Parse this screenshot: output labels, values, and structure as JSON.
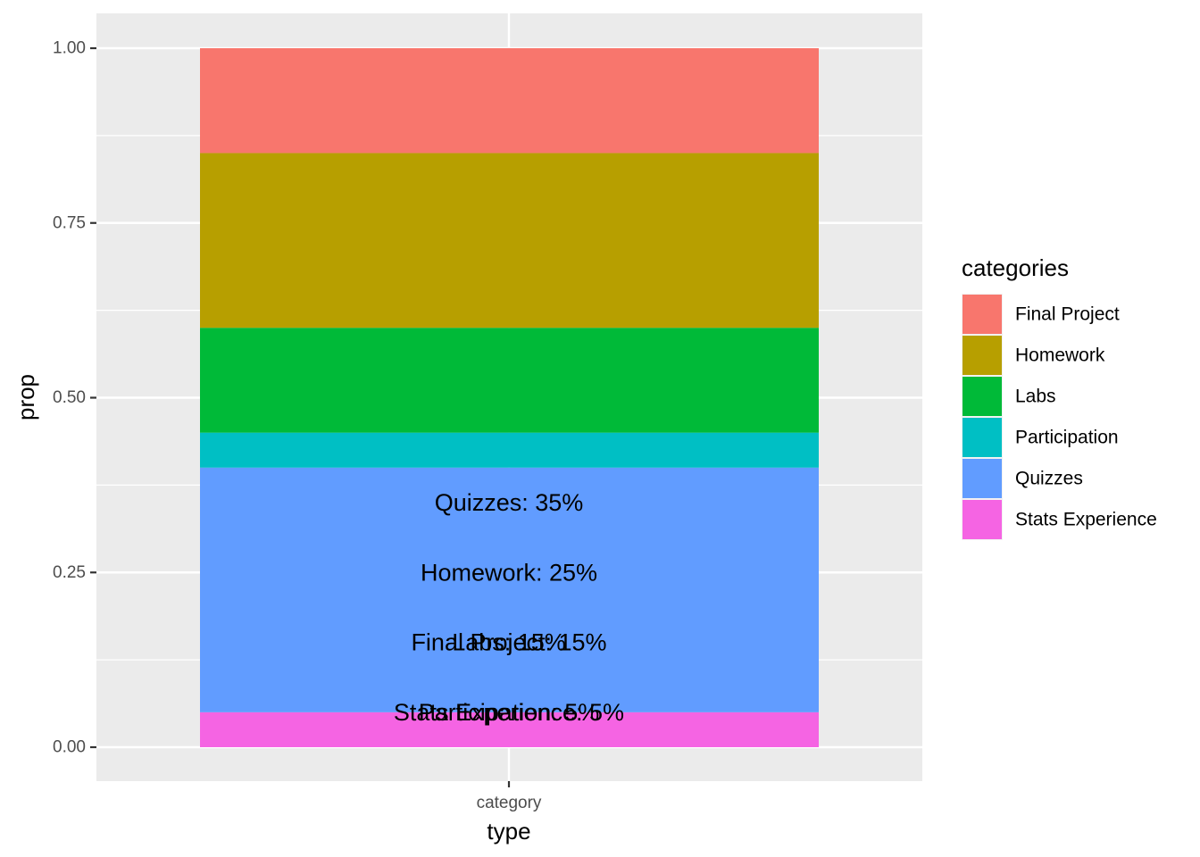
{
  "chart_data": {
    "type": "bar",
    "stacked": true,
    "xlabel": "type",
    "ylabel": "prop",
    "categories": [
      "category"
    ],
    "ylim": [
      0,
      1
    ],
    "yticks": [
      0.0,
      0.25,
      0.5,
      0.75,
      1.0
    ],
    "ytick_labels": [
      "0.00",
      "0.25",
      "0.50",
      "0.75",
      "1.00"
    ],
    "grid": true,
    "legend": {
      "title": "categories",
      "position": "right"
    },
    "series": [
      {
        "name": "Final Project",
        "values": [
          0.15
        ],
        "color": "#F8766D"
      },
      {
        "name": "Homework",
        "values": [
          0.25
        ],
        "color": "#B79F00"
      },
      {
        "name": "Labs",
        "values": [
          0.15
        ],
        "color": "#00BA38"
      },
      {
        "name": "Participation",
        "values": [
          0.05
        ],
        "color": "#00BFC4"
      },
      {
        "name": "Quizzes",
        "values": [
          0.35
        ],
        "color": "#619CFF"
      },
      {
        "name": "Stats Experience",
        "values": [
          0.05
        ],
        "color": "#F564E3"
      }
    ],
    "text_labels": [
      {
        "text": "Quizzes: 35%",
        "y": 0.35
      },
      {
        "text": "Homework: 25%",
        "y": 0.25
      },
      {
        "text": "Final Project: 15%",
        "y": 0.15
      },
      {
        "text": "Labs: 15%",
        "y": 0.15
      },
      {
        "text": "Participation: 5%",
        "y": 0.05
      },
      {
        "text": "Stats Experience: 5%",
        "y": 0.05
      }
    ]
  }
}
